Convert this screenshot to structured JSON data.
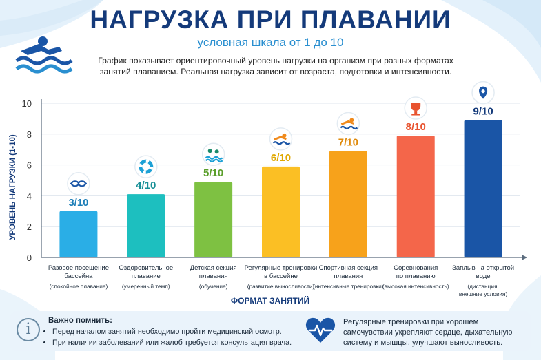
{
  "header": {
    "title": "НАГРУЗКА ПРИ ПЛАВАНИИ",
    "subtitle": "условная шкала от 1 до 10",
    "description": "График показывает ориентировочный уровень нагрузки на организм при разных форматах занятий плаванием. Реальная нагрузка зависит от возраста, подготовки и интенсивности."
  },
  "chart_data": {
    "type": "bar",
    "ylabel": "УРОВЕНЬ НАГРУЗКИ (1-10)",
    "xlabel": "ФОРМАТ ЗАНЯТИЙ",
    "ylim": [
      0,
      10
    ],
    "yticks": [
      0,
      2,
      4,
      6,
      8,
      10
    ],
    "grid": true,
    "categories": [
      {
        "label": [
          "Разовое посещение",
          "бассейна"
        ],
        "sublabel": [
          "(спокойное плавание)"
        ],
        "value": 3,
        "value_label": "3/10",
        "color": "#2aaee6",
        "label_color": "#1e7fb8",
        "icon": "goggles-icon"
      },
      {
        "label": [
          "Оздоровительное",
          "плавание"
        ],
        "sublabel": [
          "(умеренный темп)"
        ],
        "value": 4.1,
        "value_label": "4/10",
        "color": "#1dbfbf",
        "label_color": "#178f96",
        "icon": "lifebuoy-icon"
      },
      {
        "label": [
          "Детская секция",
          "плавания"
        ],
        "sublabel": [
          "(обучение)"
        ],
        "value": 4.9,
        "value_label": "5/10",
        "color": "#7ec142",
        "label_color": "#5a9e2a",
        "icon": "children-swimming-icon"
      },
      {
        "label": [
          "Регулярные тренировки",
          "в бассейне"
        ],
        "sublabel": [
          "(развитие выносливости)"
        ],
        "value": 5.9,
        "value_label": "6/10",
        "color": "#fbbf24",
        "label_color": "#e0a800",
        "icon": "swimmer-icon"
      },
      {
        "label": [
          "Спортивная секция",
          "плавания"
        ],
        "sublabel": [
          "(интенсивные тренировки)"
        ],
        "value": 6.9,
        "value_label": "7/10",
        "color": "#f7a21b",
        "label_color": "#e08a0a",
        "icon": "swimmer-icon"
      },
      {
        "label": [
          "Соревнования",
          "по плаванию"
        ],
        "sublabel": [
          "(высокая интенсивность)"
        ],
        "value": 7.9,
        "value_label": "8/10",
        "color": "#f4664a",
        "label_color": "#e8532f",
        "icon": "trophy-icon"
      },
      {
        "label": [
          "Заплыв на открытой",
          "воде"
        ],
        "sublabel": [
          "(дистанция,",
          "внешние условия)"
        ],
        "value": 8.9,
        "value_label": "9/10",
        "color": "#1a55a6",
        "label_color": "#143a7a",
        "icon": "location-pin-icon"
      }
    ]
  },
  "notes": {
    "title": "Важно помнить:",
    "items": [
      "Перед началом занятий необходимо пройти медицинский осмотр.",
      "При наличии заболеваний или жалоб требуется консультация врача."
    ],
    "tip": "Регулярные тренировки при хорошем самочувствии укрепляют сердце, дыхательную систему и мышцы, улучшают выносливость."
  }
}
